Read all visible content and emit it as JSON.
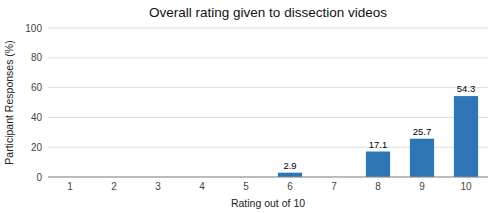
{
  "chart_data": {
    "type": "bar",
    "title": "Overall rating given to dissection videos",
    "xlabel": "Rating out of 10",
    "ylabel": "Participant Responses (%)",
    "categories": [
      1,
      2,
      3,
      4,
      5,
      6,
      7,
      8,
      9,
      10
    ],
    "values": [
      0,
      0,
      0,
      0,
      0,
      2.9,
      0,
      17.1,
      25.7,
      54.3
    ],
    "value_labels": [
      null,
      null,
      null,
      null,
      null,
      "2.9",
      null,
      "17.1",
      "25.7",
      "54.3"
    ],
    "data_labels": true,
    "color": "#2E75B6",
    "ylim": [
      0,
      100
    ],
    "yticks": [
      0,
      20,
      40,
      60,
      80,
      100
    ],
    "grid": true
  }
}
